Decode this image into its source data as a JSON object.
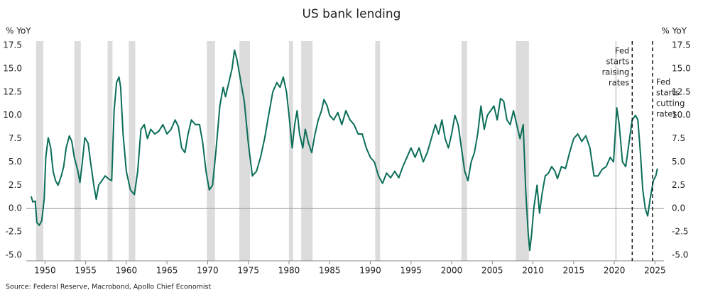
{
  "chart_data": {
    "type": "line",
    "title": "US bank lending",
    "y_label": "% YoY",
    "y2_label": "% YoY",
    "source": "Source: Federal Reserve, Macrobond, Apollo Chief Economist",
    "color": "#0b6e58",
    "xlim": [
      1947.7,
      2026.1
    ],
    "xticks": [
      1950,
      1955,
      1960,
      1965,
      1970,
      1975,
      1980,
      1985,
      1990,
      1995,
      2000,
      2005,
      2010,
      2015,
      2020,
      2025
    ],
    "ylim": [
      -5,
      17.5
    ],
    "yticks": [
      17.5,
      {
        "value": 15,
        "label": "15.0"
      },
      12.5,
      {
        "value": 10,
        "label": "10.0"
      },
      7.5,
      {
        "value": 5,
        "label": "5.0"
      },
      2.5,
      {
        "value": 0,
        "label": "0.0"
      },
      -2.5,
      {
        "value": -5,
        "label": "-5.0"
      }
    ],
    "y2lim": [
      -5,
      17.5
    ],
    "y2ticks": [
      17.5,
      {
        "value": 15,
        "label": "15.0"
      },
      12.5,
      {
        "value": 10,
        "label": "10.0"
      },
      7.5,
      {
        "value": 5,
        "label": "5.0"
      },
      2.5,
      {
        "value": 0,
        "label": "0.0"
      },
      -2.5,
      {
        "value": -5,
        "label": "-5.0"
      }
    ],
    "zero_line": true,
    "shade_color": "#dcdcdc",
    "shaded_periods": [
      [
        1948.9,
        1949.8
      ],
      [
        1953.6,
        1954.4
      ],
      [
        1957.7,
        1958.3
      ],
      [
        1960.3,
        1961.1
      ],
      [
        1969.9,
        1970.9
      ],
      [
        1973.9,
        1975.2
      ],
      [
        1980.0,
        1980.5
      ],
      [
        1981.5,
        1982.9
      ],
      [
        1990.6,
        1991.2
      ],
      [
        2001.2,
        2001.9
      ],
      [
        2007.9,
        2009.5
      ],
      [
        2020.1,
        2020.3
      ]
    ],
    "events": [
      {
        "x": 2022.2,
        "label": [
          "Fed",
          "starts",
          "raising",
          "rates"
        ]
      },
      {
        "x": 2024.7,
        "label": [
          "Fed",
          "starts",
          "cutting",
          "rates"
        ]
      }
    ],
    "x": [
      1948.3,
      1948.5,
      1948.8,
      1949.0,
      1949.3,
      1949.6,
      1949.9,
      1950.1,
      1950.4,
      1950.7,
      1951.0,
      1951.3,
      1951.6,
      1952.0,
      1952.3,
      1952.6,
      1953.0,
      1953.3,
      1953.6,
      1954.0,
      1954.3,
      1954.6,
      1954.9,
      1955.3,
      1955.6,
      1956.0,
      1956.3,
      1956.6,
      1957.0,
      1957.4,
      1957.8,
      1958.2,
      1958.5,
      1958.8,
      1959.1,
      1959.3,
      1959.6,
      1960.0,
      1960.5,
      1961.0,
      1961.4,
      1961.8,
      1962.2,
      1962.6,
      1963.0,
      1963.5,
      1964.0,
      1964.5,
      1965.0,
      1965.5,
      1966.0,
      1966.4,
      1966.8,
      1967.2,
      1967.6,
      1968.0,
      1968.5,
      1969.0,
      1969.4,
      1969.8,
      1970.2,
      1970.6,
      1971.0,
      1971.5,
      1971.9,
      1972.2,
      1972.6,
      1973.0,
      1973.3,
      1973.6,
      1974.0,
      1974.5,
      1975.0,
      1975.5,
      1976.0,
      1976.5,
      1977.0,
      1977.5,
      1978.0,
      1978.5,
      1978.9,
      1979.3,
      1979.7,
      1980.0,
      1980.4,
      1980.7,
      1981.0,
      1981.3,
      1981.7,
      1982.0,
      1982.4,
      1982.8,
      1983.2,
      1983.6,
      1984.0,
      1984.3,
      1984.7,
      1985.0,
      1985.5,
      1986.0,
      1986.5,
      1987.0,
      1987.5,
      1988.0,
      1988.5,
      1989.0,
      1989.5,
      1990.0,
      1990.5,
      1991.0,
      1991.5,
      1992.0,
      1992.5,
      1993.0,
      1993.5,
      1994.0,
      1994.5,
      1995.0,
      1995.5,
      1996.0,
      1996.5,
      1997.0,
      1997.5,
      1998.0,
      1998.4,
      1998.8,
      1999.2,
      1999.6,
      2000.0,
      2000.4,
      2000.8,
      2001.2,
      2001.6,
      2002.0,
      2002.4,
      2002.8,
      2003.2,
      2003.6,
      2004.0,
      2004.4,
      2004.8,
      2005.2,
      2005.6,
      2006.0,
      2006.4,
      2006.8,
      2007.2,
      2007.6,
      2008.0,
      2008.4,
      2008.8,
      2009.1,
      2009.4,
      2009.6,
      2009.8,
      2010.1,
      2010.5,
      2010.8,
      2011.1,
      2011.5,
      2011.9,
      2012.3,
      2012.7,
      2013.0,
      2013.5,
      2014.0,
      2014.5,
      2015.0,
      2015.5,
      2016.0,
      2016.5,
      2017.0,
      2017.5,
      2018.0,
      2018.5,
      2019.0,
      2019.5,
      2019.9,
      2020.3,
      2020.6,
      2021.0,
      2021.4,
      2021.8,
      2022.2,
      2022.6,
      2022.9,
      2023.2,
      2023.5,
      2023.8,
      2024.1,
      2024.4,
      2024.8,
      2025.1,
      2025.3
    ],
    "values": [
      1.3,
      0.7,
      0.8,
      -1.5,
      -1.8,
      -1.3,
      1.0,
      5.5,
      7.6,
      6.5,
      4.0,
      3.0,
      2.5,
      3.5,
      4.5,
      6.5,
      7.8,
      7.2,
      5.5,
      4.2,
      2.8,
      5.0,
      7.6,
      7.0,
      5.0,
      2.5,
      1.0,
      2.5,
      3.0,
      3.5,
      3.2,
      3.0,
      10.5,
      13.5,
      14.1,
      13.0,
      8.0,
      4.0,
      2.0,
      1.5,
      4.0,
      8.5,
      9.0,
      7.5,
      8.5,
      8.0,
      8.3,
      9.0,
      8.0,
      8.5,
      9.5,
      8.8,
      6.5,
      6.0,
      8.0,
      9.5,
      9.0,
      9.0,
      7.0,
      4.0,
      2.0,
      2.5,
      6.0,
      11.0,
      13.0,
      12.0,
      13.5,
      15.0,
      17.0,
      16.0,
      14.0,
      11.5,
      7.0,
      3.5,
      4.0,
      5.5,
      7.5,
      10.0,
      12.5,
      13.5,
      13.0,
      14.1,
      12.5,
      10.0,
      6.5,
      9.0,
      10.5,
      8.0,
      6.5,
      8.5,
      7.0,
      6.0,
      8.0,
      9.5,
      10.5,
      11.7,
      11.0,
      10.0,
      9.5,
      10.3,
      9.0,
      10.5,
      9.5,
      9.0,
      8.0,
      8.0,
      6.5,
      5.5,
      5.0,
      3.5,
      2.7,
      3.8,
      3.3,
      4.0,
      3.3,
      4.5,
      5.5,
      6.5,
      5.5,
      6.5,
      5.0,
      6.0,
      7.5,
      9.0,
      8.0,
      9.5,
      7.5,
      6.5,
      8.0,
      10.0,
      9.0,
      6.5,
      4.0,
      3.0,
      5.0,
      6.0,
      8.0,
      11.0,
      8.5,
      10.0,
      10.5,
      11.0,
      9.5,
      11.8,
      11.5,
      9.5,
      9.0,
      10.5,
      9.0,
      7.5,
      9.0,
      2.0,
      -2.5,
      -4.5,
      -3.0,
      0.0,
      2.5,
      -0.5,
      1.5,
      3.5,
      3.8,
      4.5,
      4.0,
      3.2,
      4.5,
      4.3,
      6.0,
      7.5,
      8.0,
      7.2,
      7.8,
      6.5,
      3.5,
      3.5,
      4.2,
      4.5,
      5.5,
      5.0,
      10.8,
      9.0,
      5.0,
      4.5,
      7.0,
      9.5,
      10.0,
      9.5,
      6.0,
      2.0,
      0.0,
      -0.8,
      1.0,
      3.0,
      3.5,
      4.3
    ]
  }
}
